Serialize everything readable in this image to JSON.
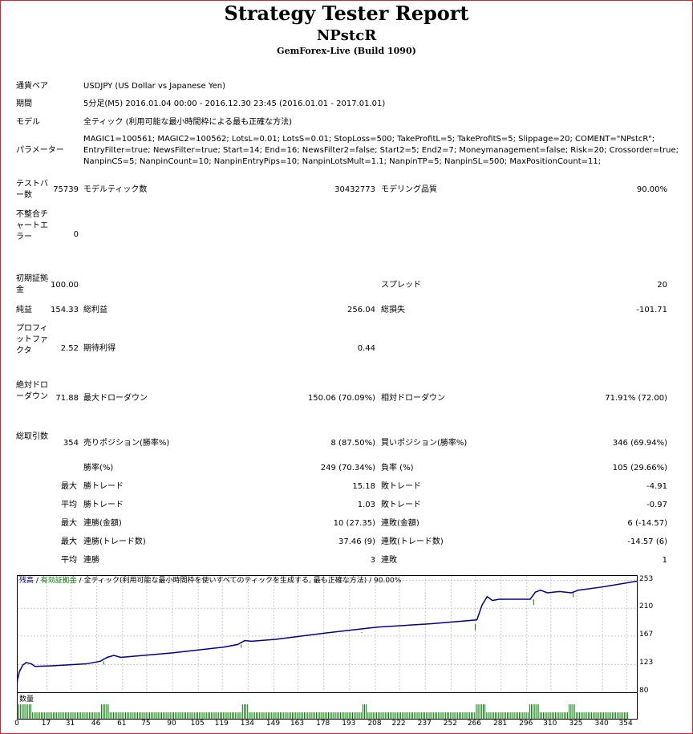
{
  "header": {
    "title": "Strategy Tester Report",
    "subtitle": "NPstcR",
    "server": "GemForex-Live (Build 1090)"
  },
  "info": {
    "symbol_label": "通貨ペア",
    "symbol_value": "USDJPY (US Dollar vs Japanese Yen)",
    "period_label": "期間",
    "period_value": "5分足(M5) 2016.01.04 00:00 - 2016.12.30 23:45 (2016.01.01 - 2017.01.01)",
    "model_label": "モデル",
    "model_value": "全ティック (利用可能な最小時間枠による最も正確な方法)",
    "params_label": "パラメーター",
    "params_line1": "MAGIC1=100561; MAGIC2=100562; LotsL=0.01; LotsS=0.01; StopLoss=500; TakeProfitL=5; TakeProfitS=5; Slippage=20; COMENT=\"NPstcR\";",
    "params_line2": "EntryFilter=true; NewsFilter=true; Start=14; End=16; NewsFilter2=false; Start2=5; End2=7; Moneymanagement=false; Risk=20; Crossorder=true;",
    "params_line3": "NanpinCS=5; NanpinCount=10; NanpinEntryPips=10; NanpinLotsMult=1.1; NanpinTP=5; NanpinSL=500; MaxPositionCount=11;"
  },
  "stats": {
    "bars_label": "テストバー数",
    "bars_value": "75739",
    "ticks_label": "モデルティック数",
    "ticks_value": "30432773",
    "quality_label": "モデリング品質",
    "quality_value": "90.00%",
    "mismatch_label": "不整合チャートエラー",
    "mismatch_value": "0",
    "deposit_label": "初期証拠金",
    "deposit_value": "100.00",
    "spread_label": "スプレッド",
    "spread_value": "20",
    "netprofit_label": "純益",
    "netprofit_value": "154.33",
    "grossprofit_label": "総利益",
    "grossprofit_value": "256.04",
    "grossloss_label": "総損失",
    "grossloss_value": "-101.71",
    "pf_label": "プロフィットファクタ",
    "pf_value": "2.52",
    "expected_label": "期待利得",
    "expected_value": "0.44",
    "absdd_label": "絶対ドローダウン",
    "absdd_value": "71.88",
    "maxdd_label": "最大ドローダウン",
    "maxdd_value": "150.06 (70.09%)",
    "reldd_label": "相対ドローダウン",
    "reldd_value": "71.91% (72.00)",
    "trades_label": "総取引数",
    "trades_value": "354",
    "short_label": "売りポジション(勝率%)",
    "short_value": "8 (87.50%)",
    "long_label": "買いポジション(勝率%)",
    "long_value": "346 (69.94%)",
    "winrate_label": "勝率(%)",
    "winrate_value": "249 (70.34%)",
    "lossrate_label": "負率 (%)",
    "lossrate_value": "105 (29.66%)",
    "max_label": "最大",
    "avg_label": "平均",
    "largest_win_label": "勝トレード",
    "largest_win_value": "15.18",
    "largest_loss_label": "敗トレード",
    "largest_loss_value": "-4.91",
    "avg_win_label": "勝トレード",
    "avg_win_value": "1.03",
    "avg_loss_label": "敗トレード",
    "avg_loss_value": "-0.97",
    "consec_wins_money_label": "連勝(金額)",
    "consec_wins_money_value": "10 (27.35)",
    "consec_losses_money_label": "連敗(金額)",
    "consec_losses_money_value": "6 (-14.57)",
    "consec_profit_label": "連勝(トレード数)",
    "consec_profit_value": "37.46 (9)",
    "consec_loss_label": "連敗(トレード数)",
    "consec_loss_value": "-14.57 (6)",
    "avg_consec_wins_label": "連勝",
    "avg_consec_wins_value": "3",
    "avg_consec_losses_label": "連敗",
    "avg_consec_losses_value": "1"
  },
  "chart_data": {
    "type": "line",
    "legend_balance": "残高",
    "legend_sep1": " / ",
    "legend_equity": "有効証拠金",
    "legend_sep2": " / ",
    "legend_rest": "全ティック(利用可能な最小時間枠を使いすべてのティックを生成する, 最も正確な方法)",
    "legend_sep3": " / ",
    "legend_quality": "90.00%",
    "volume_label": "数量",
    "colors": {
      "balance": "#00008b",
      "equity": "#008000",
      "grid": "#c8c8c8"
    },
    "ylim": [
      80,
      260
    ],
    "xlim": [
      0,
      360
    ],
    "y_ticks": [
      "253",
      "210",
      "167",
      "123",
      "80"
    ],
    "y_tick_values": [
      253,
      210,
      167,
      123,
      80
    ],
    "x_ticks": [
      "0",
      "17",
      "31",
      "46",
      "61",
      "75",
      "90",
      "105",
      "119",
      "134",
      "149",
      "163",
      "178",
      "193",
      "208",
      "222",
      "237",
      "252",
      "266",
      "281",
      "296",
      "310",
      "325",
      "340",
      "354"
    ],
    "x_tick_values": [
      0,
      17,
      31,
      46,
      61,
      75,
      90,
      105,
      119,
      134,
      149,
      163,
      178,
      193,
      208,
      222,
      237,
      252,
      266,
      281,
      296,
      310,
      325,
      340,
      354
    ],
    "balance": [
      [
        0,
        100
      ],
      [
        1,
        112
      ],
      [
        3,
        122
      ],
      [
        5,
        126
      ],
      [
        8,
        124
      ],
      [
        10,
        120
      ],
      [
        20,
        121
      ],
      [
        40,
        124
      ],
      [
        48,
        128
      ],
      [
        52,
        134
      ],
      [
        56,
        137
      ],
      [
        60,
        134
      ],
      [
        64,
        135
      ],
      [
        90,
        141
      ],
      [
        120,
        150
      ],
      [
        128,
        154
      ],
      [
        132,
        160
      ],
      [
        136,
        159
      ],
      [
        150,
        162
      ],
      [
        180,
        172
      ],
      [
        206,
        180
      ],
      [
        210,
        181
      ],
      [
        240,
        186
      ],
      [
        267,
        192
      ],
      [
        270,
        215
      ],
      [
        273,
        228
      ],
      [
        276,
        222
      ],
      [
        280,
        224
      ],
      [
        298,
        224
      ],
      [
        301,
        235
      ],
      [
        304,
        238
      ],
      [
        308,
        234
      ],
      [
        315,
        236
      ],
      [
        322,
        234
      ],
      [
        326,
        238
      ],
      [
        340,
        243
      ],
      [
        360,
        252
      ]
    ],
    "equity_dips": [
      [
        0,
        96
      ],
      [
        50,
        123
      ],
      [
        130,
        149
      ],
      [
        200,
        173
      ],
      [
        266,
        176
      ],
      [
        300,
        215
      ],
      [
        323,
        227
      ]
    ],
    "volume_x": [
      0,
      1,
      2,
      3,
      4,
      5,
      6,
      7,
      8,
      9,
      10,
      11,
      12,
      13,
      14,
      15,
      16,
      17,
      18,
      19,
      20,
      21,
      22,
      23,
      24,
      25,
      26,
      27,
      28,
      29,
      30,
      31,
      32,
      33,
      34,
      35,
      36,
      37,
      38,
      39,
      40,
      41,
      42,
      43,
      44,
      45,
      46,
      47,
      48,
      49,
      50,
      51,
      52,
      53,
      54,
      55,
      56,
      57,
      58,
      59,
      60,
      61,
      62,
      63,
      64,
      65,
      66,
      67,
      68,
      69,
      70,
      71,
      72,
      73,
      74,
      75,
      76,
      77,
      78,
      79,
      80,
      81,
      82,
      83,
      84,
      85,
      86,
      87,
      88,
      89,
      90,
      91,
      92,
      93,
      94,
      95,
      96,
      97,
      98,
      99,
      100,
      101,
      102,
      103,
      104,
      105,
      106,
      107,
      108,
      109,
      110,
      111,
      112,
      113,
      114,
      115,
      116,
      117,
      118,
      119,
      120,
      121,
      122,
      123,
      124,
      125,
      126,
      127,
      128,
      129,
      130,
      131,
      132,
      133,
      134,
      135,
      136,
      137,
      138,
      139,
      140,
      141,
      142,
      143,
      144,
      145,
      146,
      147,
      148,
      149,
      150,
      151,
      152,
      153,
      154,
      155,
      156,
      157,
      158,
      159,
      160,
      161,
      162,
      163,
      164,
      165,
      166,
      167,
      168,
      169,
      170,
      171,
      172,
      173,
      174,
      175,
      176,
      177,
      178,
      179,
      180,
      181,
      182,
      183,
      184,
      185,
      186,
      187,
      188,
      189,
      190,
      191,
      192,
      193,
      194,
      195,
      196,
      197,
      198,
      199,
      200,
      201,
      202,
      203,
      204,
      205,
      206,
      207,
      208,
      209,
      210,
      211,
      212,
      213,
      214,
      215,
      216,
      217,
      218,
      219,
      220,
      221,
      222,
      223,
      224,
      225,
      226,
      227,
      228,
      229,
      230,
      231,
      232,
      233,
      234,
      235,
      236,
      237,
      238,
      239,
      240,
      241,
      242,
      243,
      244,
      245,
      246,
      247,
      248,
      249,
      250,
      251,
      252,
      253,
      254,
      255,
      256,
      257,
      258,
      259,
      260,
      261,
      262,
      263,
      264,
      265,
      266,
      267,
      268,
      269,
      270,
      271,
      272,
      273,
      274,
      275,
      276,
      277,
      278,
      279,
      280,
      281,
      282,
      283,
      284,
      285,
      286,
      287,
      288,
      289,
      290,
      291,
      292,
      293,
      294,
      295,
      296,
      297,
      298,
      299,
      300,
      301,
      302,
      303,
      304,
      305,
      306,
      307,
      308,
      309,
      310,
      311,
      312,
      313,
      314,
      315,
      316,
      317,
      318,
      319,
      320,
      321,
      322,
      323,
      324,
      325,
      326,
      327,
      328,
      329,
      330,
      331,
      332,
      333,
      334,
      335,
      336,
      337,
      338,
      339,
      340,
      341,
      342,
      343,
      344,
      345,
      346,
      347,
      348,
      349,
      350,
      351,
      352,
      353,
      354
    ],
    "volume_tall": [
      0,
      1,
      2,
      3,
      4,
      5,
      6,
      7,
      48,
      49,
      50,
      51,
      52,
      130,
      131,
      132,
      133,
      200,
      201,
      202,
      266,
      267,
      268,
      269,
      270,
      271,
      297,
      298,
      299,
      300,
      301,
      302,
      320,
      321,
      322,
      323
    ]
  }
}
